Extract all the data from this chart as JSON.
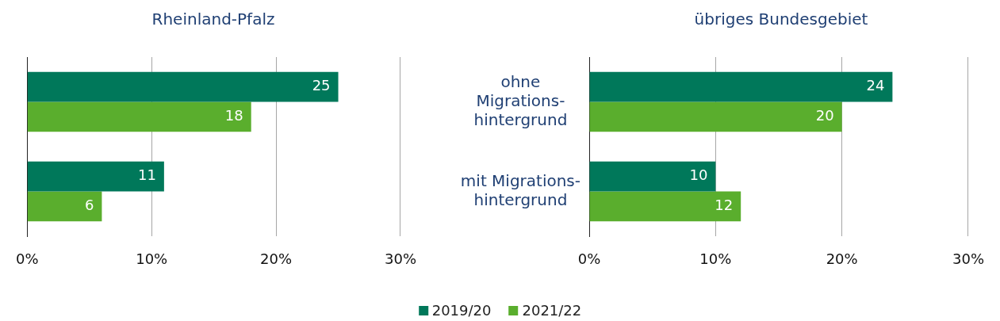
{
  "chart_data": [
    {
      "type": "bar",
      "orientation": "horizontal",
      "title": "Rheinland-Pfalz",
      "categories": [
        null,
        null
      ],
      "series": [
        {
          "color": "#00785a",
          "values": [
            25,
            11
          ]
        },
        {
          "color": "#5aae2d",
          "values": [
            18,
            6
          ]
        }
      ],
      "xlim": [
        0,
        30
      ],
      "xticks": [
        {
          "value": 0,
          "label": "0%"
        },
        {
          "value": 10,
          "label": "10%"
        },
        {
          "value": 20,
          "label": "20%"
        },
        {
          "value": 30,
          "label": "30%"
        }
      ],
      "grid": "x",
      "tick_labels": "x",
      "data_labels": true
    },
    {
      "type": "bar",
      "orientation": "horizontal",
      "title": "übriges Bundesgebiet",
      "categories": [
        "ohne Migrations-hintergrund",
        "mit Migrations-hintergrund"
      ],
      "series": [
        {
          "name": "2019/20",
          "color": "#00785a",
          "values": [
            24,
            10
          ]
        },
        {
          "name": "2021/22",
          "color": "#5aae2d",
          "values": [
            20,
            12
          ]
        }
      ],
      "xlim": [
        0,
        30
      ],
      "xticks": [
        {
          "value": 0,
          "label": "0%"
        },
        {
          "value": 10,
          "label": "10%"
        },
        {
          "value": 20,
          "label": "20%"
        },
        {
          "value": 30,
          "label": "30%"
        }
      ],
      "grid": "x",
      "data_labels": true,
      "legend": "bottom"
    }
  ]
}
